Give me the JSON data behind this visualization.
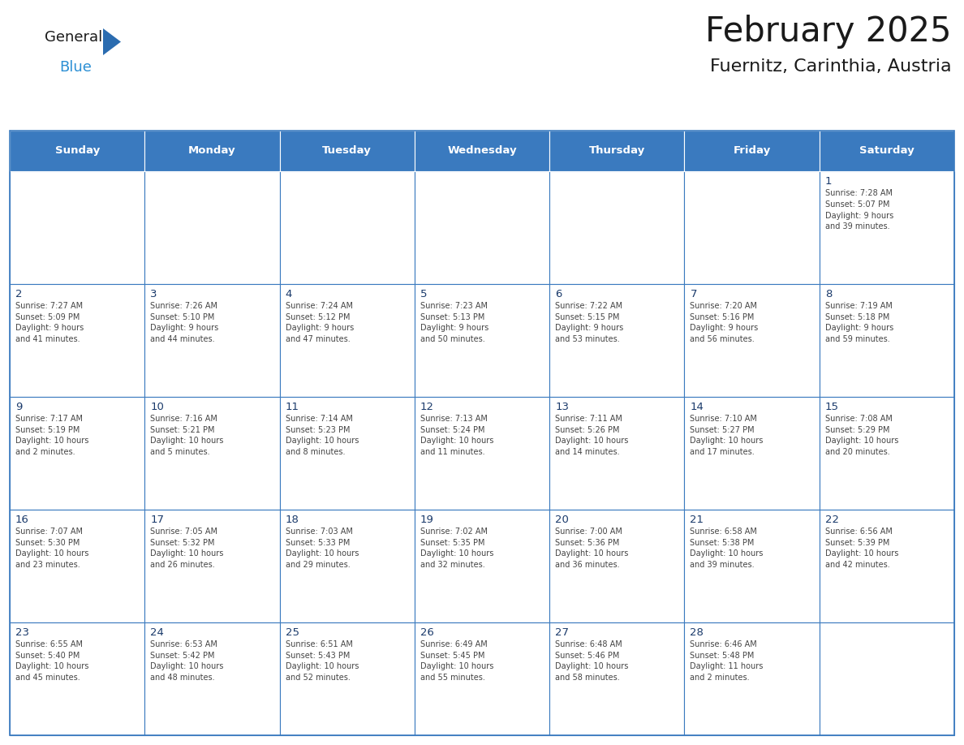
{
  "title": "February 2025",
  "subtitle": "Fuernitz, Carinthia, Austria",
  "header_bg": "#3a7abf",
  "header_text_color": "#ffffff",
  "cell_bg": "#ffffff",
  "day_number_color": "#1a3a6b",
  "info_text_color": "#444444",
  "grid_color": "#3a7abf",
  "days_of_week": [
    "Sunday",
    "Monday",
    "Tuesday",
    "Wednesday",
    "Thursday",
    "Friday",
    "Saturday"
  ],
  "weeks": [
    [
      {
        "day": null,
        "info": null
      },
      {
        "day": null,
        "info": null
      },
      {
        "day": null,
        "info": null
      },
      {
        "day": null,
        "info": null
      },
      {
        "day": null,
        "info": null
      },
      {
        "day": null,
        "info": null
      },
      {
        "day": 1,
        "info": "Sunrise: 7:28 AM\nSunset: 5:07 PM\nDaylight: 9 hours\nand 39 minutes."
      }
    ],
    [
      {
        "day": 2,
        "info": "Sunrise: 7:27 AM\nSunset: 5:09 PM\nDaylight: 9 hours\nand 41 minutes."
      },
      {
        "day": 3,
        "info": "Sunrise: 7:26 AM\nSunset: 5:10 PM\nDaylight: 9 hours\nand 44 minutes."
      },
      {
        "day": 4,
        "info": "Sunrise: 7:24 AM\nSunset: 5:12 PM\nDaylight: 9 hours\nand 47 minutes."
      },
      {
        "day": 5,
        "info": "Sunrise: 7:23 AM\nSunset: 5:13 PM\nDaylight: 9 hours\nand 50 minutes."
      },
      {
        "day": 6,
        "info": "Sunrise: 7:22 AM\nSunset: 5:15 PM\nDaylight: 9 hours\nand 53 minutes."
      },
      {
        "day": 7,
        "info": "Sunrise: 7:20 AM\nSunset: 5:16 PM\nDaylight: 9 hours\nand 56 minutes."
      },
      {
        "day": 8,
        "info": "Sunrise: 7:19 AM\nSunset: 5:18 PM\nDaylight: 9 hours\nand 59 minutes."
      }
    ],
    [
      {
        "day": 9,
        "info": "Sunrise: 7:17 AM\nSunset: 5:19 PM\nDaylight: 10 hours\nand 2 minutes."
      },
      {
        "day": 10,
        "info": "Sunrise: 7:16 AM\nSunset: 5:21 PM\nDaylight: 10 hours\nand 5 minutes."
      },
      {
        "day": 11,
        "info": "Sunrise: 7:14 AM\nSunset: 5:23 PM\nDaylight: 10 hours\nand 8 minutes."
      },
      {
        "day": 12,
        "info": "Sunrise: 7:13 AM\nSunset: 5:24 PM\nDaylight: 10 hours\nand 11 minutes."
      },
      {
        "day": 13,
        "info": "Sunrise: 7:11 AM\nSunset: 5:26 PM\nDaylight: 10 hours\nand 14 minutes."
      },
      {
        "day": 14,
        "info": "Sunrise: 7:10 AM\nSunset: 5:27 PM\nDaylight: 10 hours\nand 17 minutes."
      },
      {
        "day": 15,
        "info": "Sunrise: 7:08 AM\nSunset: 5:29 PM\nDaylight: 10 hours\nand 20 minutes."
      }
    ],
    [
      {
        "day": 16,
        "info": "Sunrise: 7:07 AM\nSunset: 5:30 PM\nDaylight: 10 hours\nand 23 minutes."
      },
      {
        "day": 17,
        "info": "Sunrise: 7:05 AM\nSunset: 5:32 PM\nDaylight: 10 hours\nand 26 minutes."
      },
      {
        "day": 18,
        "info": "Sunrise: 7:03 AM\nSunset: 5:33 PM\nDaylight: 10 hours\nand 29 minutes."
      },
      {
        "day": 19,
        "info": "Sunrise: 7:02 AM\nSunset: 5:35 PM\nDaylight: 10 hours\nand 32 minutes."
      },
      {
        "day": 20,
        "info": "Sunrise: 7:00 AM\nSunset: 5:36 PM\nDaylight: 10 hours\nand 36 minutes."
      },
      {
        "day": 21,
        "info": "Sunrise: 6:58 AM\nSunset: 5:38 PM\nDaylight: 10 hours\nand 39 minutes."
      },
      {
        "day": 22,
        "info": "Sunrise: 6:56 AM\nSunset: 5:39 PM\nDaylight: 10 hours\nand 42 minutes."
      }
    ],
    [
      {
        "day": 23,
        "info": "Sunrise: 6:55 AM\nSunset: 5:40 PM\nDaylight: 10 hours\nand 45 minutes."
      },
      {
        "day": 24,
        "info": "Sunrise: 6:53 AM\nSunset: 5:42 PM\nDaylight: 10 hours\nand 48 minutes."
      },
      {
        "day": 25,
        "info": "Sunrise: 6:51 AM\nSunset: 5:43 PM\nDaylight: 10 hours\nand 52 minutes."
      },
      {
        "day": 26,
        "info": "Sunrise: 6:49 AM\nSunset: 5:45 PM\nDaylight: 10 hours\nand 55 minutes."
      },
      {
        "day": 27,
        "info": "Sunrise: 6:48 AM\nSunset: 5:46 PM\nDaylight: 10 hours\nand 58 minutes."
      },
      {
        "day": 28,
        "info": "Sunrise: 6:46 AM\nSunset: 5:48 PM\nDaylight: 11 hours\nand 2 minutes."
      },
      {
        "day": null,
        "info": null
      }
    ]
  ],
  "logo_text_general": "General",
  "logo_text_blue": "Blue",
  "logo_triangle_color": "#2b6cb0",
  "figsize": [
    11.88,
    9.18
  ],
  "dpi": 100
}
